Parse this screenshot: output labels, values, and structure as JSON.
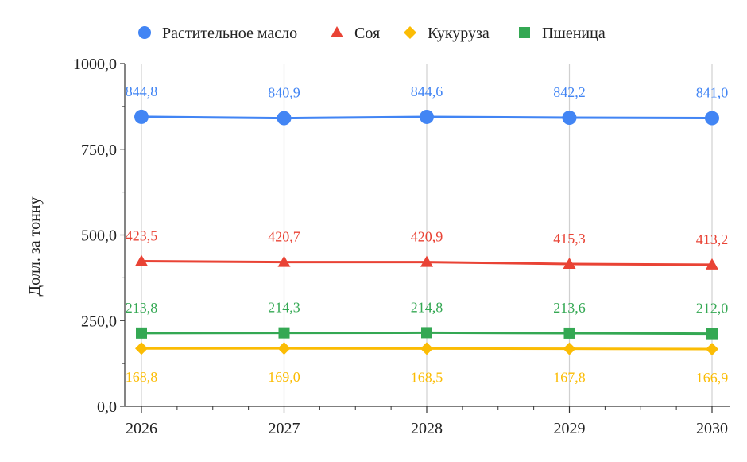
{
  "chart_data": {
    "type": "line",
    "title": "",
    "xlabel": "",
    "ylabel": "Долл. за тонну",
    "categories": [
      "2026",
      "2027",
      "2028",
      "2029",
      "2030"
    ],
    "ylim": [
      0,
      1000
    ],
    "yticks": [
      0,
      250,
      500,
      750,
      1000
    ],
    "ytick_labels": [
      "0,0",
      "250,0",
      "500,0",
      "750,0",
      "1000,0"
    ],
    "grid": "vertical",
    "legend_position": "top",
    "series": [
      {
        "name": "Растительное масло",
        "marker": "circle",
        "color": "#4285F4",
        "values": [
          844.8,
          840.9,
          844.6,
          842.2,
          841.0
        ],
        "labels": [
          "844,8",
          "840,9",
          "844,6",
          "842,2",
          "841,0"
        ],
        "label_position": "above"
      },
      {
        "name": "Соя",
        "marker": "triangle",
        "color": "#E94335",
        "values": [
          423.5,
          420.7,
          420.9,
          415.3,
          413.2
        ],
        "labels": [
          "423,5",
          "420,7",
          "420,9",
          "415,3",
          "413,2"
        ],
        "label_position": "above"
      },
      {
        "name": "Кукуруза",
        "marker": "diamond",
        "color": "#FBBC04",
        "values": [
          168.8,
          169.0,
          168.5,
          167.8,
          166.9
        ],
        "labels": [
          "168,8",
          "169,0",
          "168,5",
          "167,8",
          "166,9"
        ],
        "label_position": "below"
      },
      {
        "name": "Пшеница",
        "marker": "square",
        "color": "#34A853",
        "values": [
          213.8,
          214.3,
          214.8,
          213.6,
          212.0
        ],
        "labels": [
          "213,8",
          "214,3",
          "214,8",
          "213,6",
          "212,0"
        ],
        "label_position": "above"
      }
    ]
  }
}
